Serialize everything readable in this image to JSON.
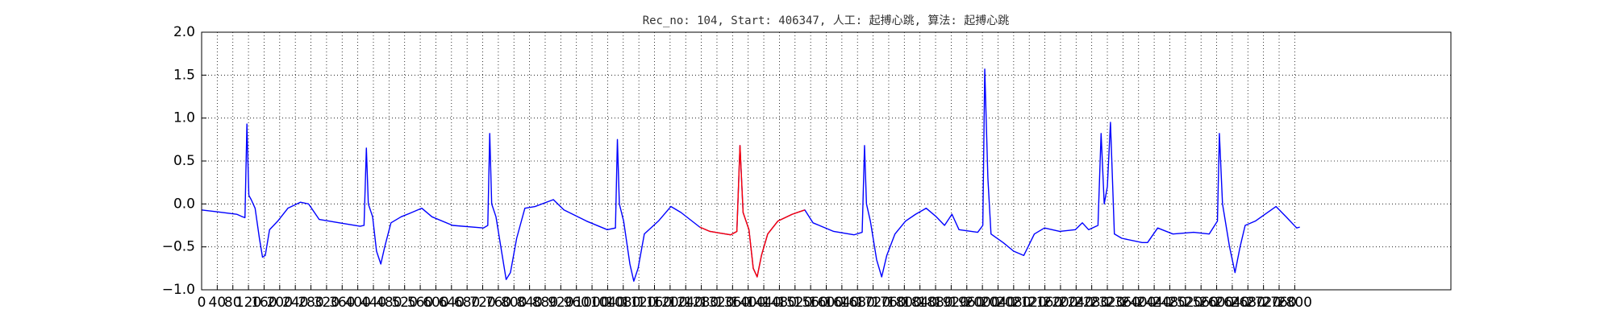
{
  "chart_data": {
    "type": "line",
    "title": "Rec_no: 104, Start: 406347, 人工: 起搏心跳, 算法: 起搏心跳",
    "xlim": [
      0,
      3200
    ],
    "ylim": [
      -1.0,
      2.0
    ],
    "xticks": [
      0,
      40,
      80,
      120,
      160,
      200,
      240,
      280,
      320,
      360,
      400,
      440,
      480,
      520,
      560,
      600,
      640,
      680,
      720,
      760,
      800,
      840,
      880,
      920,
      960,
      1000,
      1040,
      1080,
      1120,
      1160,
      1200,
      1240,
      1280,
      1320,
      1360,
      1400,
      1440,
      1480,
      1520,
      1560,
      1600,
      1640,
      1680,
      1720,
      1760,
      1800,
      1840,
      1880,
      1920,
      1960,
      2000,
      2040,
      2080,
      2120,
      2160,
      2200,
      2240,
      2280,
      2320,
      2360,
      2400,
      2440,
      2480,
      2520,
      2560,
      2600,
      2640,
      2680,
      2720,
      2760,
      2800
    ],
    "yticks": [
      {
        "value": -1.0,
        "label": "−1.0"
      },
      {
        "value": -0.5,
        "label": "−0.5"
      },
      {
        "value": 0,
        "label": "0.0"
      },
      {
        "value": 0.5,
        "label": "0.5"
      },
      {
        "value": 1.0,
        "label": "1.0"
      },
      {
        "value": 1.5,
        "label": "1.5"
      },
      {
        "value": 2.0,
        "label": "2.0"
      }
    ],
    "grid": true,
    "series": [
      {
        "color": "#0000ff",
        "x": [
          0,
          37,
          90,
          105,
          111,
          116,
          121,
          127,
          137,
          148,
          156,
          163,
          174,
          195,
          221,
          253,
          274,
          301,
          353,
          406,
          416,
          422,
          427,
          438,
          448,
          459,
          469,
          485,
          511,
          538,
          564,
          590,
          643,
          722,
          733,
          738,
          743,
          754,
          770,
          780,
          791,
          807,
          828,
          854,
          901,
          928,
          986,
          1039,
          1060,
          1065,
          1070,
          1081,
          1097,
          1107,
          1118,
          1134,
          1170,
          1202,
          1228,
          1276,
          1302,
          1355,
          1371,
          1379,
          1387,
          1402,
          1413,
          1423,
          1434,
          1450,
          1476,
          1513,
          1545,
          1566,
          1619,
          1671,
          1692,
          1698,
          1703,
          1713,
          1729,
          1742,
          1755,
          1776,
          1803,
          1829,
          1856,
          1882,
          1903,
          1922,
          1940,
          1988,
          2001,
          2006,
          2014,
          2022,
          2053,
          2080,
          2106,
          2133,
          2159,
          2198,
          2238,
          2256,
          2272,
          2296,
          2304,
          2312,
          2320,
          2328,
          2338,
          2357,
          2409,
          2423,
          2449,
          2488,
          2541,
          2581,
          2602,
          2607,
          2615,
          2633,
          2647,
          2660,
          2673,
          2699,
          2752,
          2778,
          2805,
          2813
        ],
        "values": [
          -0.07,
          -0.09,
          -0.12,
          -0.15,
          -0.16,
          0.93,
          0.1,
          0.05,
          -0.05,
          -0.4,
          -0.62,
          -0.6,
          -0.3,
          -0.2,
          -0.05,
          0.02,
          0,
          -0.18,
          -0.22,
          -0.26,
          -0.25,
          0.65,
          0.0,
          -0.15,
          -0.55,
          -0.7,
          -0.5,
          -0.22,
          -0.15,
          -0.1,
          -0.05,
          -0.15,
          -0.25,
          -0.28,
          -0.25,
          0.82,
          0.0,
          -0.15,
          -0.6,
          -0.88,
          -0.8,
          -0.4,
          -0.05,
          -0.03,
          0.05,
          -0.07,
          -0.2,
          -0.3,
          -0.28,
          0.75,
          0.0,
          -0.2,
          -0.7,
          -0.9,
          -0.75,
          -0.35,
          -0.2,
          -0.03,
          -0.1,
          -0.27,
          -0.32,
          -0.36,
          -0.32,
          0.68,
          -0.1,
          -0.3,
          -0.75,
          -0.85,
          -0.6,
          -0.35,
          -0.2,
          -0.12,
          -0.07,
          -0.22,
          -0.32,
          -0.36,
          -0.33,
          0.68,
          0.0,
          -0.2,
          -0.65,
          -0.85,
          -0.6,
          -0.35,
          -0.2,
          -0.12,
          -0.05,
          -0.15,
          -0.25,
          -0.12,
          -0.3,
          -0.33,
          -0.25,
          1.57,
          0.3,
          -0.35,
          -0.45,
          -0.55,
          -0.6,
          -0.35,
          -0.28,
          -0.32,
          -0.3,
          -0.22,
          -0.3,
          -0.25,
          0.82,
          0.0,
          0.2,
          0.95,
          -0.35,
          -0.4,
          -0.45,
          -0.45,
          -0.28,
          -0.35,
          -0.33,
          -0.35,
          -0.2,
          0.82,
          0.0,
          -0.5,
          -0.8,
          -0.5,
          -0.25,
          -0.2,
          -0.03,
          -0.15,
          -0.28,
          -0.27
        ]
      },
      {
        "color": "#ff0000",
        "x": [
          1276,
          1302,
          1355,
          1371,
          1379,
          1387,
          1402,
          1413,
          1423,
          1434,
          1450,
          1476,
          1513,
          1545
        ],
        "values": [
          -0.27,
          -0.32,
          -0.36,
          -0.32,
          0.68,
          -0.1,
          -0.3,
          -0.75,
          -0.85,
          -0.6,
          -0.35,
          -0.2,
          -0.12,
          -0.07
        ]
      }
    ]
  }
}
